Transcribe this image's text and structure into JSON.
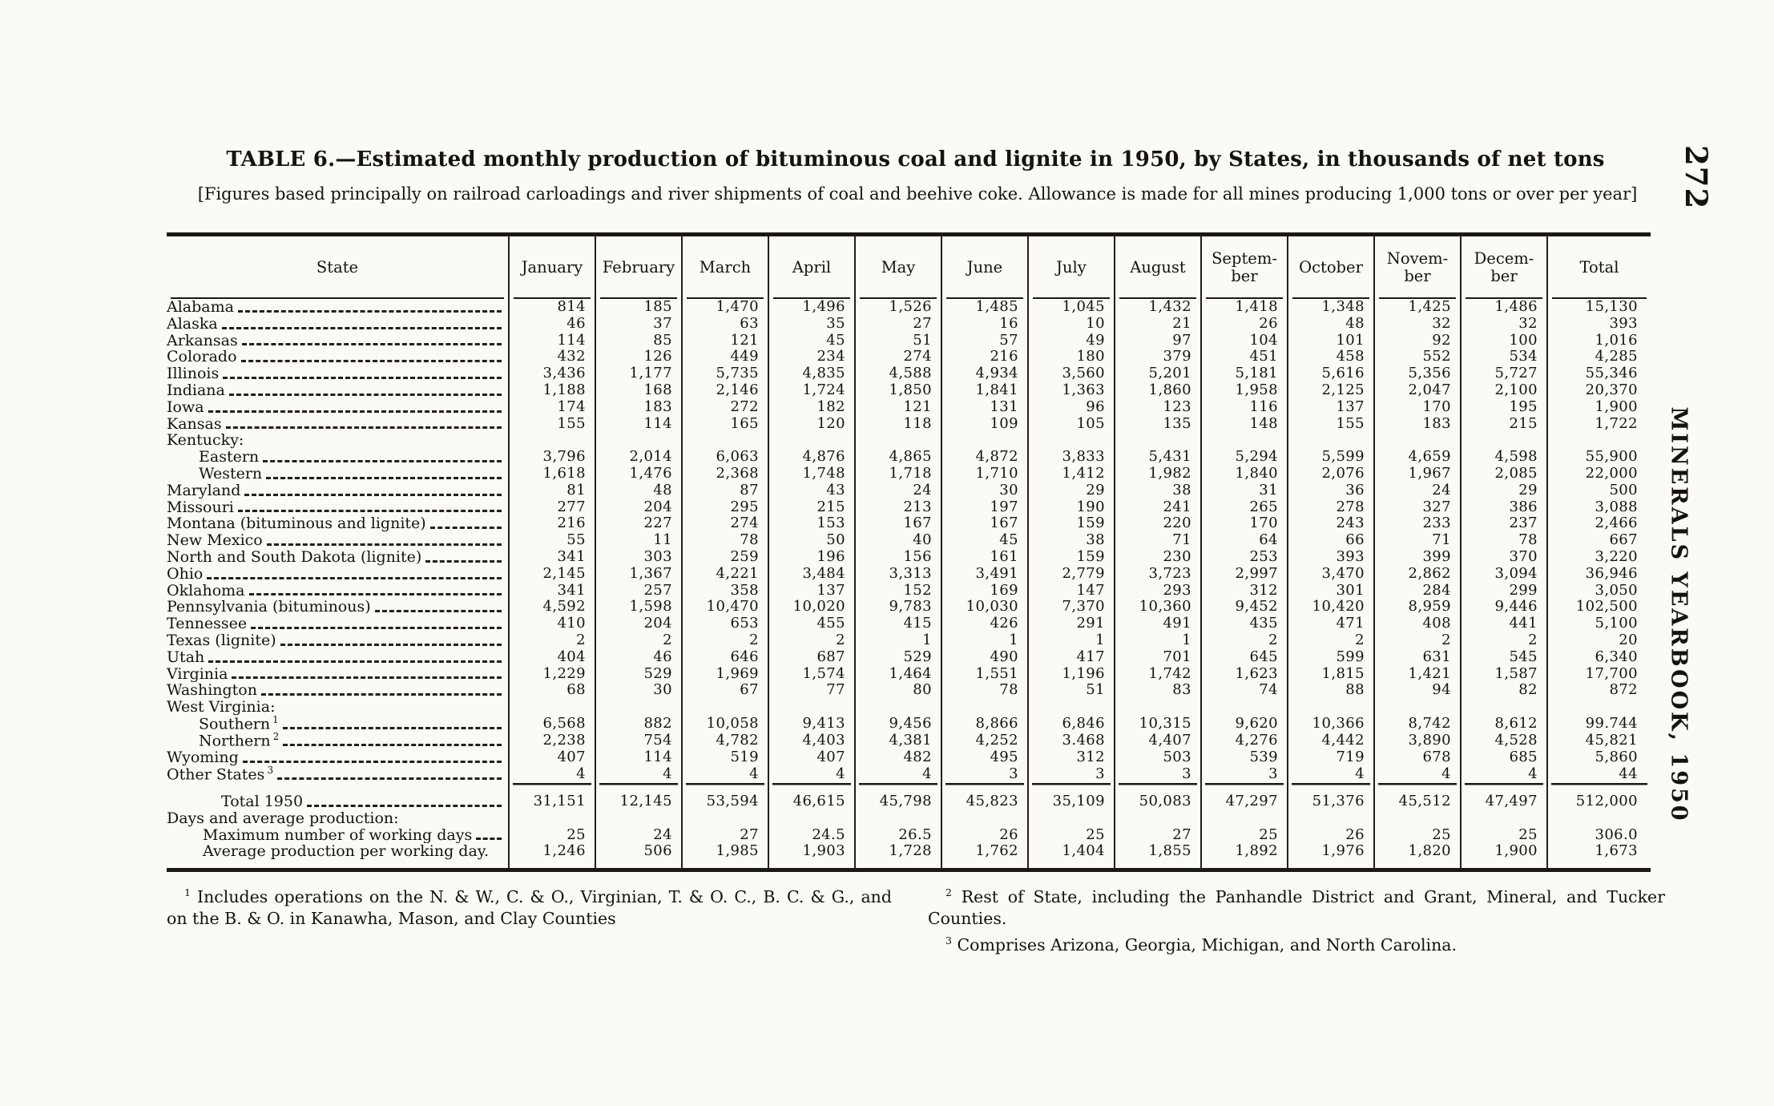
{
  "page": {
    "page_number": "272",
    "running_title": "MINERALS YEARBOOK, 1950"
  },
  "table": {
    "title": "TABLE 6.—Estimated monthly production of bituminous coal and lignite in 1950, by States, in thousands of net tons",
    "subtitle": "[Figures based principally on railroad carloadings and river shipments of coal and beehive coke. Allowance is made for all mines producing 1,000 tons or over per year]",
    "columns": [
      {
        "key": "state",
        "lines": [
          "State"
        ]
      },
      {
        "key": "january",
        "lines": [
          "January"
        ]
      },
      {
        "key": "february",
        "lines": [
          "February"
        ]
      },
      {
        "key": "march",
        "lines": [
          "March"
        ]
      },
      {
        "key": "april",
        "lines": [
          "April"
        ]
      },
      {
        "key": "may",
        "lines": [
          "May"
        ]
      },
      {
        "key": "june",
        "lines": [
          "June"
        ]
      },
      {
        "key": "july",
        "lines": [
          "July"
        ]
      },
      {
        "key": "august",
        "lines": [
          "August"
        ]
      },
      {
        "key": "september",
        "lines": [
          "Septem-",
          "ber"
        ]
      },
      {
        "key": "october",
        "lines": [
          "October"
        ]
      },
      {
        "key": "november",
        "lines": [
          "Novem-",
          "ber"
        ]
      },
      {
        "key": "december",
        "lines": [
          "Decem-",
          "ber"
        ]
      },
      {
        "key": "total",
        "lines": [
          "Total"
        ]
      }
    ],
    "rows": [
      {
        "label": "Alabama",
        "indent": 0,
        "leaders": true,
        "values": [
          "814",
          "185",
          "1,470",
          "1,496",
          "1,526",
          "1,485",
          "1,045",
          "1,432",
          "1,418",
          "1,348",
          "1,425",
          "1,486",
          "15,130"
        ]
      },
      {
        "label": "Alaska",
        "indent": 0,
        "leaders": true,
        "values": [
          "46",
          "37",
          "63",
          "35",
          "27",
          "16",
          "10",
          "21",
          "26",
          "48",
          "32",
          "32",
          "393"
        ]
      },
      {
        "label": "Arkansas",
        "indent": 0,
        "leaders": true,
        "values": [
          "114",
          "85",
          "121",
          "45",
          "51",
          "57",
          "49",
          "97",
          "104",
          "101",
          "92",
          "100",
          "1,016"
        ]
      },
      {
        "label": "Colorado",
        "indent": 0,
        "leaders": true,
        "values": [
          "432",
          "126",
          "449",
          "234",
          "274",
          "216",
          "180",
          "379",
          "451",
          "458",
          "552",
          "534",
          "4,285"
        ]
      },
      {
        "label": "Illinois",
        "indent": 0,
        "leaders": true,
        "values": [
          "3,436",
          "1,177",
          "5,735",
          "4,835",
          "4,588",
          "4,934",
          "3,560",
          "5,201",
          "5,181",
          "5,616",
          "5,356",
          "5,727",
          "55,346"
        ]
      },
      {
        "label": "Indiana",
        "indent": 0,
        "leaders": true,
        "values": [
          "1,188",
          "168",
          "2,146",
          "1,724",
          "1,850",
          "1,841",
          "1,363",
          "1,860",
          "1,958",
          "2,125",
          "2,047",
          "2,100",
          "20,370"
        ]
      },
      {
        "label": "Iowa",
        "indent": 0,
        "leaders": true,
        "values": [
          "174",
          "183",
          "272",
          "182",
          "121",
          "131",
          "96",
          "123",
          "116",
          "137",
          "170",
          "195",
          "1,900"
        ]
      },
      {
        "label": "Kansas",
        "indent": 0,
        "leaders": true,
        "values": [
          "155",
          "114",
          "165",
          "120",
          "118",
          "109",
          "105",
          "135",
          "148",
          "155",
          "183",
          "215",
          "1,722"
        ]
      },
      {
        "label": "Kentucky:",
        "indent": 0,
        "leaders": false,
        "values": null
      },
      {
        "label": "Eastern",
        "indent": 1,
        "leaders": true,
        "values": [
          "3,796",
          "2,014",
          "6,063",
          "4,876",
          "4,865",
          "4,872",
          "3,833",
          "5,431",
          "5,294",
          "5,599",
          "4,659",
          "4,598",
          "55,900"
        ]
      },
      {
        "label": "Western",
        "indent": 1,
        "leaders": true,
        "values": [
          "1,618",
          "1,476",
          "2,368",
          "1,748",
          "1,718",
          "1,710",
          "1,412",
          "1,982",
          "1,840",
          "2,076",
          "1,967",
          "2,085",
          "22,000"
        ]
      },
      {
        "label": "Maryland",
        "indent": 0,
        "leaders": true,
        "values": [
          "81",
          "48",
          "87",
          "43",
          "24",
          "30",
          "29",
          "38",
          "31",
          "36",
          "24",
          "29",
          "500"
        ]
      },
      {
        "label": "Missouri",
        "indent": 0,
        "leaders": true,
        "values": [
          "277",
          "204",
          "295",
          "215",
          "213",
          "197",
          "190",
          "241",
          "265",
          "278",
          "327",
          "386",
          "3,088"
        ]
      },
      {
        "label": "Montana (bituminous and lignite)",
        "indent": 0,
        "leaders": true,
        "values": [
          "216",
          "227",
          "274",
          "153",
          "167",
          "167",
          "159",
          "220",
          "170",
          "243",
          "233",
          "237",
          "2,466"
        ]
      },
      {
        "label": "New Mexico",
        "indent": 0,
        "leaders": true,
        "values": [
          "55",
          "11",
          "78",
          "50",
          "40",
          "45",
          "38",
          "71",
          "64",
          "66",
          "71",
          "78",
          "667"
        ]
      },
      {
        "label": "North and South Dakota (lignite)",
        "indent": 0,
        "leaders": true,
        "values": [
          "341",
          "303",
          "259",
          "196",
          "156",
          "161",
          "159",
          "230",
          "253",
          "393",
          "399",
          "370",
          "3,220"
        ]
      },
      {
        "label": "Ohio",
        "indent": 0,
        "leaders": true,
        "values": [
          "2,145",
          "1,367",
          "4,221",
          "3,484",
          "3,313",
          "3,491",
          "2,779",
          "3,723",
          "2,997",
          "3,470",
          "2,862",
          "3,094",
          "36,946"
        ]
      },
      {
        "label": "Oklahoma",
        "indent": 0,
        "leaders": true,
        "values": [
          "341",
          "257",
          "358",
          "137",
          "152",
          "169",
          "147",
          "293",
          "312",
          "301",
          "284",
          "299",
          "3,050"
        ]
      },
      {
        "label": "Pennsylvania (bituminous)",
        "indent": 0,
        "leaders": true,
        "values": [
          "4,592",
          "1,598",
          "10,470",
          "10,020",
          "9,783",
          "10,030",
          "7,370",
          "10,360",
          "9,452",
          "10,420",
          "8,959",
          "9,446",
          "102,500"
        ]
      },
      {
        "label": "Tennessee",
        "indent": 0,
        "leaders": true,
        "values": [
          "410",
          "204",
          "653",
          "455",
          "415",
          "426",
          "291",
          "491",
          "435",
          "471",
          "408",
          "441",
          "5,100"
        ]
      },
      {
        "label": "Texas (lignite)",
        "indent": 0,
        "leaders": true,
        "values": [
          "2",
          "2",
          "2",
          "2",
          "1",
          "1",
          "1",
          "1",
          "2",
          "2",
          "2",
          "2",
          "20"
        ]
      },
      {
        "label": "Utah",
        "indent": 0,
        "leaders": true,
        "values": [
          "404",
          "46",
          "646",
          "687",
          "529",
          "490",
          "417",
          "701",
          "645",
          "599",
          "631",
          "545",
          "6,340"
        ]
      },
      {
        "label": "Virginia",
        "indent": 0,
        "leaders": true,
        "values": [
          "1,229",
          "529",
          "1,969",
          "1,574",
          "1,464",
          "1,551",
          "1,196",
          "1,742",
          "1,623",
          "1,815",
          "1,421",
          "1,587",
          "17,700"
        ]
      },
      {
        "label": "Washington",
        "indent": 0,
        "leaders": true,
        "values": [
          "68",
          "30",
          "67",
          "77",
          "80",
          "78",
          "51",
          "83",
          "74",
          "88",
          "94",
          "82",
          "872"
        ]
      },
      {
        "label": "West Virginia:",
        "indent": 0,
        "leaders": false,
        "values": null
      },
      {
        "label": "Southern",
        "sup": "1",
        "indent": 1,
        "leaders": true,
        "values": [
          "6,568",
          "882",
          "10,058",
          "9,413",
          "9,456",
          "8,866",
          "6,846",
          "10,315",
          "9,620",
          "10,366",
          "8,742",
          "8,612",
          "99.744"
        ]
      },
      {
        "label": "Northern",
        "sup": "2",
        "indent": 1,
        "leaders": true,
        "values": [
          "2,238",
          "754",
          "4,782",
          "4,403",
          "4,381",
          "4,252",
          "3.468",
          "4,407",
          "4,276",
          "4,442",
          "3,890",
          "4,528",
          "45,821"
        ]
      },
      {
        "label": "Wyoming",
        "indent": 0,
        "leaders": true,
        "values": [
          "407",
          "114",
          "519",
          "407",
          "482",
          "495",
          "312",
          "503",
          "539",
          "719",
          "678",
          "685",
          "5,860"
        ]
      },
      {
        "label": "Other States",
        "sup": "3",
        "indent": 0,
        "leaders": true,
        "values": [
          "4",
          "4",
          "4",
          "4",
          "4",
          "3",
          "3",
          "3",
          "3",
          "4",
          "4",
          "4",
          "44"
        ]
      }
    ],
    "summary_rows": [
      {
        "label": "Total 1950",
        "indent": 3,
        "leaders": true,
        "values": [
          "31,151",
          "12,145",
          "53,594",
          "46,615",
          "45,798",
          "45,823",
          "35,109",
          "50,083",
          "47,297",
          "51,376",
          "45,512",
          "47,497",
          "512,000"
        ]
      },
      {
        "label": "Days and average production:",
        "indent": 0,
        "leaders": false,
        "values": null
      },
      {
        "label": "Maximum number of working days",
        "indent": 2,
        "leaders": true,
        "values": [
          "25",
          "24",
          "27",
          "24.5",
          "26.5",
          "26",
          "25",
          "27",
          "25",
          "26",
          "25",
          "25",
          "306.0"
        ]
      },
      {
        "label": "Average production per working day.",
        "indent": 2,
        "leaders": false,
        "values": [
          "1,246",
          "506",
          "1,985",
          "1,903",
          "1,728",
          "1,762",
          "1,404",
          "1,855",
          "1,892",
          "1,976",
          "1,820",
          "1,900",
          "1,673"
        ]
      }
    ],
    "footnotes": [
      {
        "sup": "1",
        "column": "left",
        "text": "Includes operations on the N. & W., C. & O., Virginian, T. & O. C., B. C. & G., and on the B. & O. in Kanawha, Mason, and Clay Counties"
      },
      {
        "sup": "2",
        "column": "right",
        "text": "Rest of State, including the Panhandle District and Grant, Mineral, and Tucker Counties."
      },
      {
        "sup": "3",
        "column": "right",
        "text": "Comprises Arizona, Georgia, Michigan, and North Carolina."
      }
    ]
  }
}
